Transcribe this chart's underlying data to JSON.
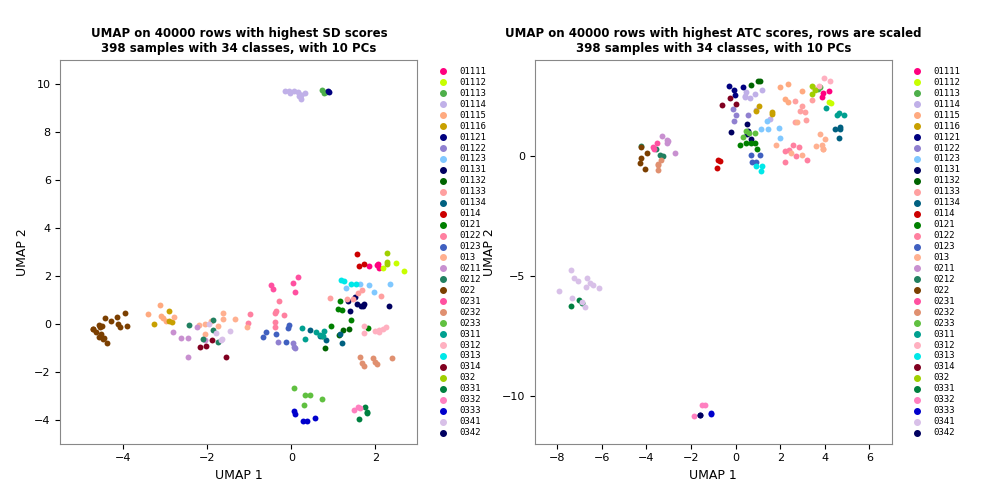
{
  "title1": "UMAP on 40000 rows with highest SD scores\n398 samples with 34 classes, with 10 PCs",
  "title2": "UMAP on 40000 rows with highest ATC scores, rows are scaled\n398 samples with 34 classes, with 10 PCs",
  "xlabel": "UMAP 1",
  "ylabel": "UMAP 2",
  "classes": [
    "01111",
    "01112",
    "01113",
    "01114",
    "01115",
    "01116",
    "01121",
    "01122",
    "01123",
    "01131",
    "01132",
    "01133",
    "01134",
    "0114",
    "0121",
    "0122",
    "0123",
    "013",
    "0211",
    "0212",
    "022",
    "0231",
    "0232",
    "0233",
    "0311",
    "0312",
    "0313",
    "0314",
    "032",
    "0331",
    "0332",
    "0333",
    "0341",
    "0342"
  ],
  "colors": [
    "#FF007F",
    "#BFFF00",
    "#4DAF4A",
    "#C4A8E0",
    "#FFAA80",
    "#B8860B",
    "#00007F",
    "#984EA3",
    "#80CCFF",
    "#000080",
    "#006400",
    "#FFAAAA",
    "#008080",
    "#E41A1C",
    "#4DAF4A",
    "#F781BF",
    "#377EB8",
    "#FFA07A",
    "#C0A0D0",
    "#4DAF4A",
    "#7B3F00",
    "#FF69B4",
    "#E09060",
    "#66C066",
    "#00CED1",
    "#FFB6C1",
    "#00FFFF",
    "#800020",
    "#A0D000",
    "#006400",
    "#FF69B4",
    "#0000CD",
    "#D8BFD8",
    "#191970"
  ],
  "plot1_xlim": [
    -5.5,
    3.0
  ],
  "plot1_ylim": [
    -5.0,
    11.0
  ],
  "plot1_xticks": [
    -4,
    -2,
    0,
    2
  ],
  "plot1_yticks": [
    -4,
    -2,
    0,
    2,
    4,
    6,
    8,
    10
  ],
  "plot2_xlim": [
    -9.0,
    7.0
  ],
  "plot2_ylim": [
    -12.0,
    4.0
  ],
  "plot2_xticks": [
    -8,
    -6,
    -4,
    -2,
    0,
    2,
    4,
    6
  ],
  "plot2_yticks": [
    -10,
    -5,
    0
  ]
}
